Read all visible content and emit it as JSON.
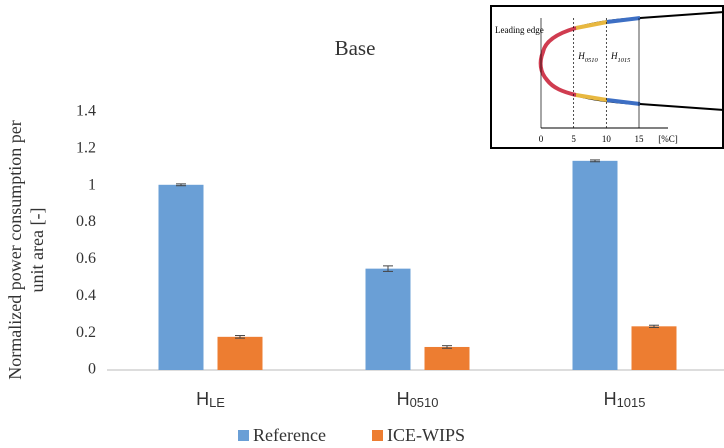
{
  "chart_data": {
    "type": "bar",
    "title": "Base",
    "ylabel": "Normalized power consumption per unit area [-]",
    "categories": [
      "HLE",
      "H0510",
      "H1015"
    ],
    "series": [
      {
        "name": "Reference",
        "color": "#6a9fd6",
        "values": [
          1.005,
          0.55,
          1.135
        ],
        "errors": [
          0.005,
          0.015,
          0.005
        ]
      },
      {
        "name": "ICE-WIPS",
        "color": "#ed7d31",
        "values": [
          0.18,
          0.125,
          0.237
        ],
        "errors": [
          0.007,
          0.007,
          0.006
        ]
      }
    ],
    "ylim": [
      0,
      1.4
    ],
    "yticks": [
      0,
      0.2,
      0.4,
      0.6,
      0.8,
      1,
      1.2,
      1.4
    ]
  },
  "inset": {
    "label": "Leading edge",
    "regions": [
      "H0510",
      "H1015"
    ],
    "xticks": [
      0,
      5,
      10,
      15
    ],
    "xunit": "[%C]"
  }
}
